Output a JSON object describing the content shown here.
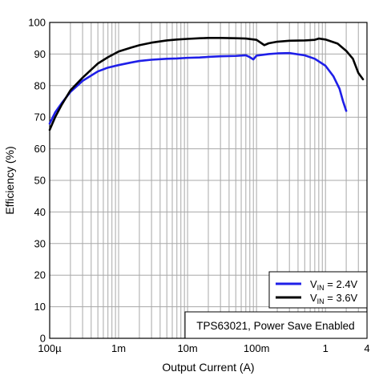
{
  "chart_data": {
    "type": "line",
    "xlabel": "Output Current (A)",
    "ylabel": "Efficiency (%)",
    "xscale": "log",
    "xlim": [
      0.0001,
      4
    ],
    "ylim": [
      0,
      100
    ],
    "grid": true,
    "x_tick_values": [
      0.0001,
      0.001,
      0.01,
      0.1,
      1,
      4
    ],
    "x_tick_labels": [
      "100µ",
      "1m",
      "10m",
      "100m",
      "1",
      "4"
    ],
    "y_ticks": [
      0,
      10,
      20,
      30,
      40,
      50,
      60,
      70,
      80,
      90,
      100
    ],
    "legend_position": "bottom-right",
    "annotation": "TPS63021, Power Save Enabled",
    "series": [
      {
        "name": "VIN = 2.4V",
        "label_main": "V",
        "label_sub": "IN",
        "label_rest": " = 2.4V",
        "color": "#1f1fe8",
        "x": [
          0.0001,
          0.00012,
          0.00015,
          0.0002,
          0.0003,
          0.0005,
          0.0007,
          0.001,
          0.0015,
          0.002,
          0.003,
          0.005,
          0.007,
          0.01,
          0.015,
          0.02,
          0.03,
          0.05,
          0.07,
          0.08,
          0.09,
          0.1,
          0.15,
          0.2,
          0.3,
          0.5,
          0.7,
          1.0,
          1.3,
          1.6,
          1.8,
          2.0
        ],
        "y": [
          68,
          71.5,
          74.5,
          78,
          81.5,
          84.5,
          85.7,
          86.5,
          87.3,
          87.8,
          88.2,
          88.5,
          88.6,
          88.8,
          88.9,
          89.1,
          89.3,
          89.4,
          89.6,
          89.0,
          88.3,
          89.5,
          90.0,
          90.2,
          90.3,
          89.6,
          88.5,
          86.3,
          83.0,
          79.0,
          75.0,
          72.0
        ]
      },
      {
        "name": "VIN = 3.6V",
        "label_main": "V",
        "label_sub": "IN",
        "label_rest": " = 3.6V",
        "color": "#000000",
        "x": [
          0.0001,
          0.00012,
          0.00015,
          0.0002,
          0.0003,
          0.0005,
          0.0007,
          0.001,
          0.0015,
          0.002,
          0.003,
          0.005,
          0.007,
          0.01,
          0.015,
          0.02,
          0.03,
          0.05,
          0.07,
          0.1,
          0.13,
          0.15,
          0.2,
          0.3,
          0.5,
          0.7,
          0.8,
          1.0,
          1.5,
          2.0,
          2.5,
          3.0,
          3.5
        ],
        "y": [
          66,
          70,
          74,
          78.5,
          82.5,
          87,
          89,
          90.8,
          92,
          92.8,
          93.6,
          94.3,
          94.6,
          94.8,
          95.0,
          95.1,
          95.1,
          95.0,
          94.9,
          94.5,
          92.8,
          93.4,
          93.9,
          94.2,
          94.3,
          94.5,
          94.9,
          94.6,
          93.3,
          91.0,
          88.5,
          84.0,
          82.0
        ]
      }
    ]
  }
}
